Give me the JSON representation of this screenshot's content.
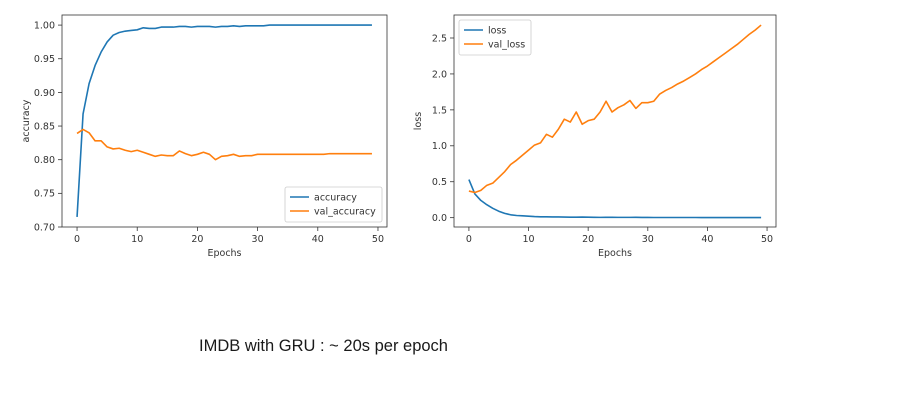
{
  "chart_data": [
    {
      "type": "line",
      "xlabel": "Epochs",
      "ylabel": "accuracy",
      "xlim": [
        -2.5,
        51.5
      ],
      "ylim": [
        0.7,
        1.015
      ],
      "xticks": [
        0,
        10,
        20,
        30,
        40,
        50
      ],
      "xtick_labels": [
        "0",
        "10",
        "20",
        "30",
        "40",
        "50"
      ],
      "yticks": [
        0.7,
        0.75,
        0.8,
        0.85,
        0.9,
        0.95,
        1.0
      ],
      "ytick_labels": [
        "0.70",
        "0.75",
        "0.80",
        "0.85",
        "0.90",
        "0.95",
        "1.00"
      ],
      "grid": false,
      "legend": "lower-right",
      "series": [
        {
          "name": "accuracy",
          "color": "#1f77b4",
          "values": [
            0.715,
            0.868,
            0.913,
            0.94,
            0.96,
            0.975,
            0.985,
            0.989,
            0.991,
            0.992,
            0.993,
            0.996,
            0.995,
            0.995,
            0.997,
            0.997,
            0.997,
            0.998,
            0.998,
            0.997,
            0.998,
            0.998,
            0.998,
            0.997,
            0.998,
            0.998,
            0.999,
            0.998,
            0.999,
            0.999,
            0.999,
            0.999,
            1.0,
            1.0,
            1.0,
            1.0,
            1.0,
            1.0,
            1.0,
            1.0,
            1.0,
            1.0,
            1.0,
            1.0,
            1.0,
            1.0,
            1.0,
            1.0,
            1.0,
            1.0
          ]
        },
        {
          "name": "val_accuracy",
          "color": "#ff7f0e",
          "values": [
            0.839,
            0.845,
            0.84,
            0.828,
            0.828,
            0.819,
            0.816,
            0.817,
            0.814,
            0.812,
            0.814,
            0.811,
            0.808,
            0.805,
            0.807,
            0.806,
            0.806,
            0.813,
            0.809,
            0.806,
            0.808,
            0.811,
            0.808,
            0.8,
            0.805,
            0.806,
            0.808,
            0.805,
            0.806,
            0.806,
            0.808,
            0.808,
            0.808,
            0.808,
            0.808,
            0.808,
            0.808,
            0.808,
            0.808,
            0.808,
            0.808,
            0.808,
            0.809,
            0.809,
            0.809,
            0.809,
            0.809,
            0.809,
            0.809,
            0.809
          ]
        }
      ]
    },
    {
      "type": "line",
      "xlabel": "Epochs",
      "ylabel": "loss",
      "xlim": [
        -2.5,
        51.5
      ],
      "ylim": [
        -0.13,
        2.82
      ],
      "xticks": [
        0,
        10,
        20,
        30,
        40,
        50
      ],
      "xtick_labels": [
        "0",
        "10",
        "20",
        "30",
        "40",
        "50"
      ],
      "yticks": [
        0.0,
        0.5,
        1.0,
        1.5,
        2.0,
        2.5
      ],
      "ytick_labels": [
        "0.0",
        "0.5",
        "1.0",
        "1.5",
        "2.0",
        "2.5"
      ],
      "grid": false,
      "legend": "top-left",
      "series": [
        {
          "name": "loss",
          "color": "#1f77b4",
          "values": [
            0.53,
            0.33,
            0.24,
            0.18,
            0.13,
            0.09,
            0.06,
            0.04,
            0.03,
            0.025,
            0.02,
            0.015,
            0.012,
            0.012,
            0.01,
            0.01,
            0.008,
            0.006,
            0.006,
            0.008,
            0.006,
            0.005,
            0.004,
            0.005,
            0.005,
            0.004,
            0.004,
            0.004,
            0.005,
            0.003,
            0.003,
            0.002,
            0.002,
            0.002,
            0.002,
            0.002,
            0.002,
            0.002,
            0.002,
            0.001,
            0.001,
            0.001,
            0.001,
            0.001,
            0.001,
            0.001,
            0.001,
            0.001,
            0.001,
            0.001
          ]
        },
        {
          "name": "val_loss",
          "color": "#ff7f0e",
          "values": [
            0.37,
            0.35,
            0.38,
            0.45,
            0.48,
            0.56,
            0.64,
            0.74,
            0.8,
            0.87,
            0.94,
            1.01,
            1.04,
            1.16,
            1.12,
            1.23,
            1.37,
            1.33,
            1.47,
            1.3,
            1.35,
            1.37,
            1.47,
            1.62,
            1.47,
            1.53,
            1.57,
            1.63,
            1.52,
            1.6,
            1.6,
            1.62,
            1.72,
            1.77,
            1.81,
            1.86,
            1.9,
            1.95,
            2.0,
            2.06,
            2.11,
            2.17,
            2.23,
            2.29,
            2.35,
            2.41,
            2.48,
            2.55,
            2.61,
            2.68
          ]
        }
      ]
    }
  ],
  "caption": "IMDB with GRU : ~ 20s per epoch"
}
